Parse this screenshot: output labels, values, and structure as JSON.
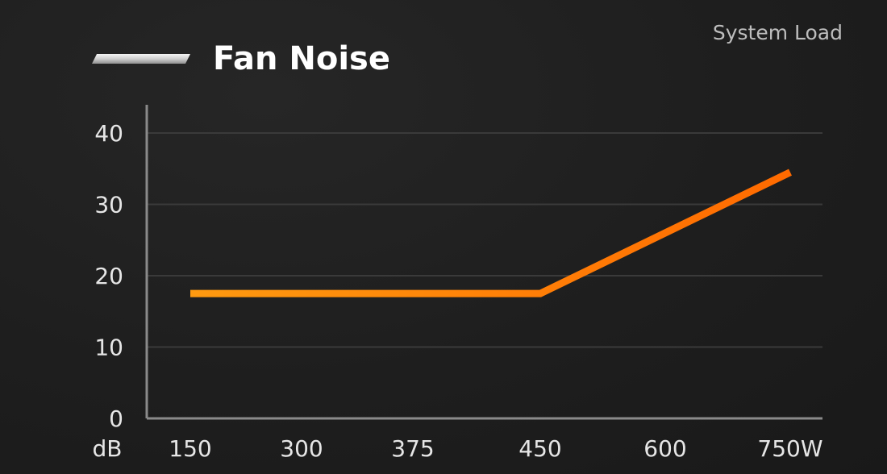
{
  "chart_data": {
    "type": "line",
    "title": "Fan Noise",
    "corner_label": "System Load",
    "ylabel": "dB",
    "x_unit": "W",
    "categories": [
      "150",
      "300",
      "375",
      "450",
      "600",
      "750"
    ],
    "ylim": [
      0,
      40
    ],
    "yticks": [
      "0",
      "10",
      "20",
      "30",
      "40"
    ],
    "grid": true,
    "series": [
      {
        "values": [
          17.5,
          17.5,
          17.5,
          17.5,
          26,
          34.5
        ]
      }
    ],
    "colors": {
      "line_start": "#ff9a10",
      "line_end": "#ff6a00",
      "grid": "#3a3a3a",
      "axis": "#8a8a8a"
    }
  }
}
